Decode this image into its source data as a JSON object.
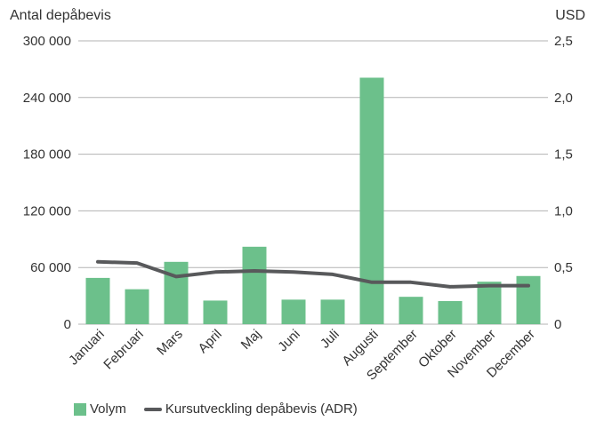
{
  "chart_data": {
    "type": "bar",
    "categories": [
      "Januari",
      "Februari",
      "Mars",
      "April",
      "Maj",
      "Juni",
      "Juli",
      "Augusti",
      "September",
      "Oktober",
      "November",
      "December"
    ],
    "series": [
      {
        "name": "Volym",
        "type": "bar",
        "axis": "left",
        "values": [
          49000,
          37000,
          66000,
          25000,
          82000,
          26000,
          26000,
          261000,
          29000,
          24500,
          45000,
          51000
        ]
      },
      {
        "name": "Kursutveckling depåbevis (ADR)",
        "type": "line",
        "axis": "right",
        "values": [
          0.55,
          0.54,
          0.42,
          0.46,
          0.47,
          0.46,
          0.44,
          0.37,
          0.37,
          0.33,
          0.34,
          0.34
        ]
      }
    ],
    "ylabel_left": "Antal depåbevis",
    "ylabel_right": "USD",
    "ylim_left": [
      0,
      300000
    ],
    "ylim_right": [
      0,
      2.5
    ],
    "yticks_left": [
      "0",
      "60 000",
      "120 000",
      "180 000",
      "240 000",
      "300 000"
    ],
    "yticks_right": [
      "0",
      "0,5",
      "1,0",
      "1,5",
      "2,0",
      "2,5"
    ],
    "grid": true,
    "legend_position": "bottom-left",
    "colors": {
      "bar": "#6cc08b",
      "line": "#58595b",
      "grid": "#b3b3b3"
    }
  }
}
